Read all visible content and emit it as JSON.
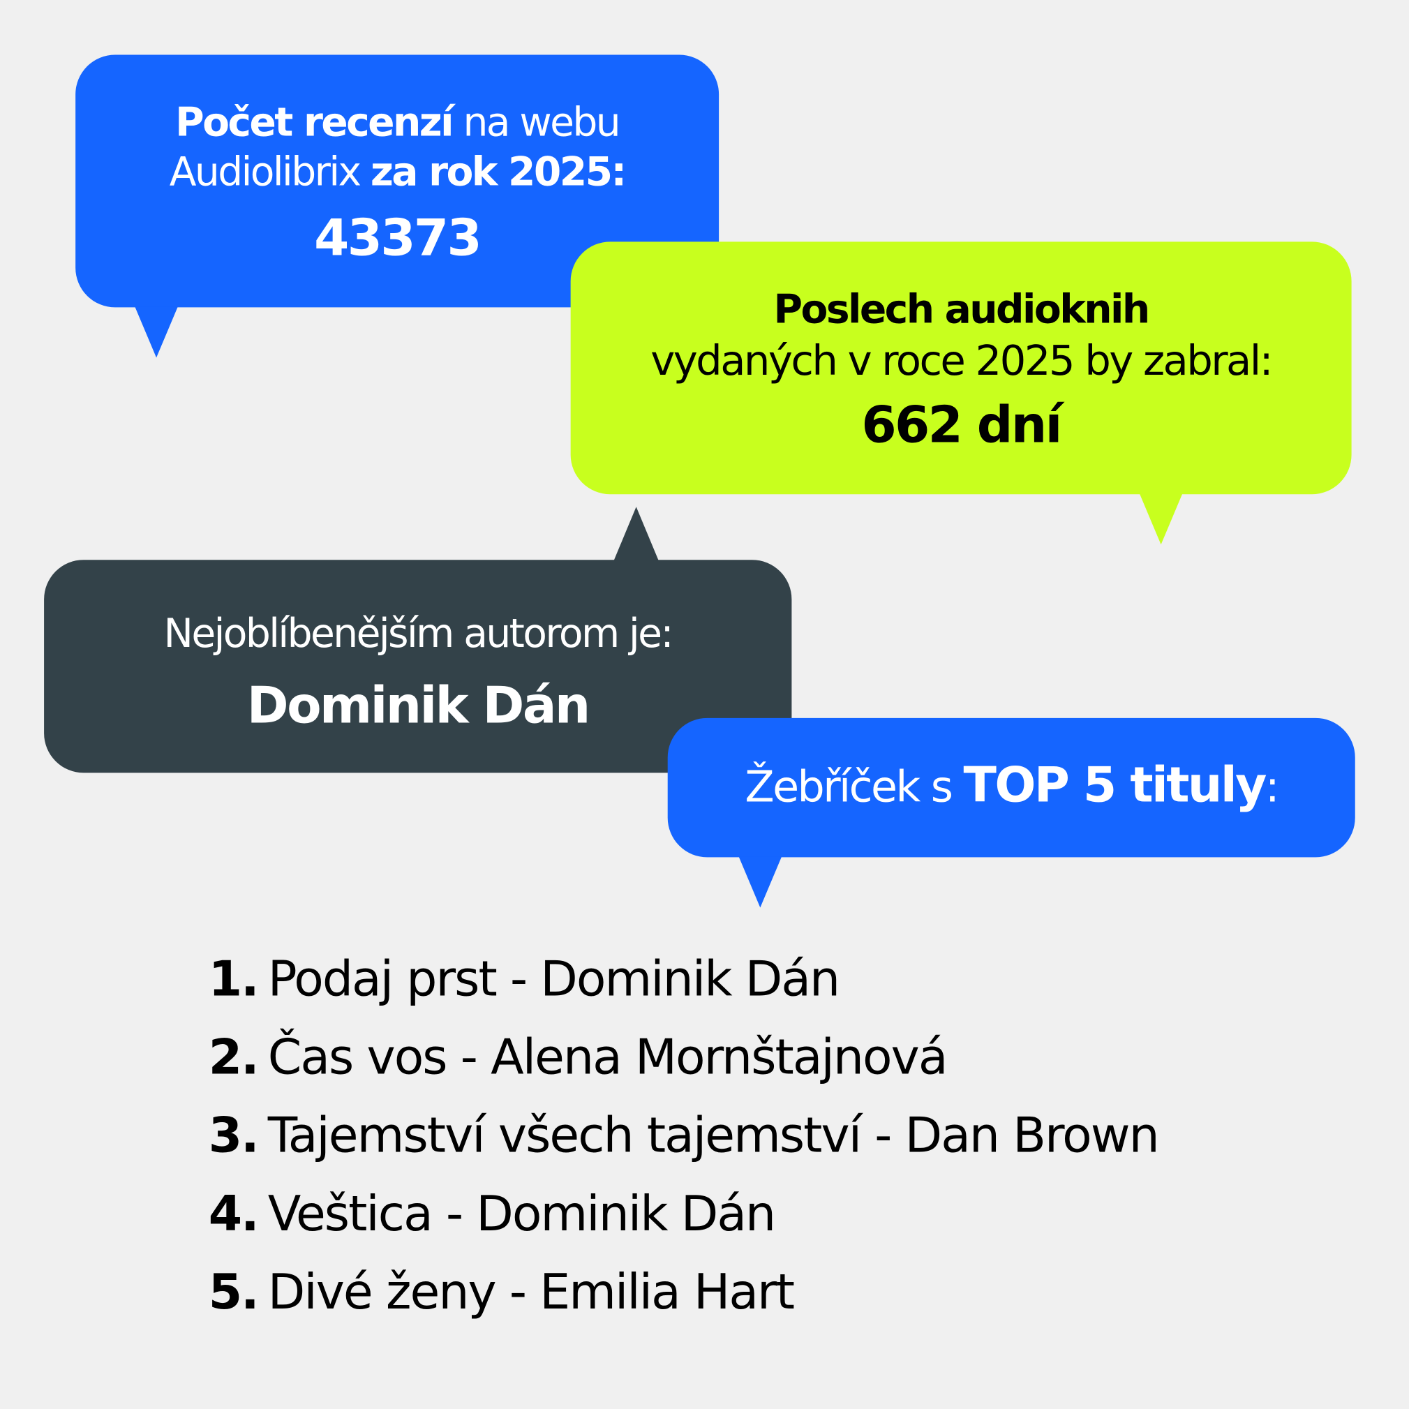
{
  "colors": {
    "background": "#f0f0f0",
    "blue": "#1565ff",
    "lime": "#c8ff1e",
    "dark": "#334249"
  },
  "reviews": {
    "bold1": "Počet recenzí",
    "text1": " na webu",
    "text2": "Audiolibrix ",
    "bold2": "za rok 2025:",
    "value": "43373"
  },
  "listening": {
    "bold1": "Poslech audioknih",
    "text2": "vydaných v roce 2025 by zabral:",
    "value": "662 dní"
  },
  "author": {
    "label": "Nejoblíbenějším autorom je:",
    "value": "Dominik Dán"
  },
  "top": {
    "text1": "Žebříček s ",
    "bold": "TOP 5 tituly",
    "text2": ":"
  },
  "list": [
    {
      "num": "1.",
      "title": "Podaj prst - Dominik Dán"
    },
    {
      "num": "2.",
      "title": "Čas vos - Alena Mornštajnová"
    },
    {
      "num": "3.",
      "title": "Tajemství všech tajemství - Dan Brown"
    },
    {
      "num": "4.",
      "title": "Veštica - Dominik Dán"
    },
    {
      "num": "5.",
      "title": "Divé ženy - Emilia Hart"
    }
  ]
}
